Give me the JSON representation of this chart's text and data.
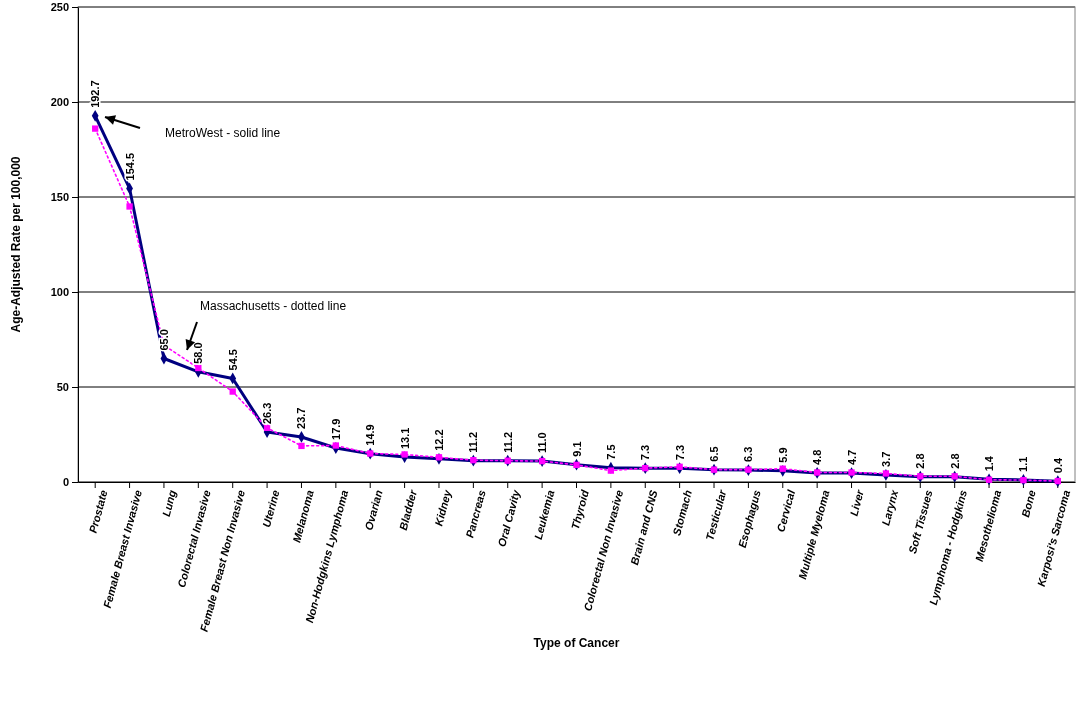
{
  "chart_data": {
    "type": "line",
    "xlabel": "Type of Cancer",
    "ylabel": "Age-Adjusted Rate per 100,000",
    "categories": [
      "Prostate",
      "Female Breast Invasive",
      "Lung",
      "Colorectal Invasive",
      "Female Breast Non Invasive",
      "Uterine",
      "Melanoma",
      "Non-Hodgkins Lymphoma",
      "Ovarian",
      "Bladder",
      "Kidney",
      "Pancreas",
      "Oral Cavity",
      "Leukemia",
      "Thyroid",
      "Colorectal Non Invasive",
      "Brain and CNS",
      "Stomach",
      "Testicular",
      "Esophagus",
      "Cervical",
      "Multiple Myeloma",
      "Liver",
      "Larynx",
      "Soft Tissues",
      "Lymphoma - Hodgkins",
      "Mesothelioma",
      "Bone",
      "Karposi's Sarcoma"
    ],
    "series": [
      {
        "color": "#000080",
        "marker": "diamond",
        "line_style": "solid",
        "values": [
          192.7,
          154.5,
          65.0,
          58.0,
          54.5,
          26.3,
          23.7,
          17.9,
          14.9,
          13.1,
          12.2,
          11.2,
          11.2,
          11.0,
          9.1,
          7.5,
          7.3,
          7.3,
          6.5,
          6.3,
          5.9,
          4.8,
          4.7,
          3.7,
          2.8,
          2.8,
          1.4,
          1.1,
          0.4
        ],
        "value_labels": [
          "192.7",
          "154.5",
          "65.0",
          "58.0",
          "54.5",
          "26.3",
          "23.7",
          "17.9",
          "14.9",
          "13.1",
          "12.2",
          "11.2",
          "11.2",
          "11.0",
          "9.1",
          "7.5",
          "7.3",
          "7.3",
          "6.5",
          "6.3",
          "5.9",
          "4.8",
          "4.7",
          "3.7",
          "2.8",
          "2.8",
          "1.4",
          "1.1",
          "0.4"
        ]
      },
      {
        "color": "#ff00ff",
        "marker": "square",
        "line_style": "dotted",
        "values": [
          186,
          145,
          72,
          60,
          47.6,
          28.5,
          19,
          19.2,
          15,
          14.5,
          13,
          11.5,
          11.2,
          11,
          9,
          6,
          7.3,
          8,
          6.5,
          6.5,
          7,
          5,
          5,
          4.5,
          3,
          3,
          1.2,
          1,
          0.5
        ]
      }
    ],
    "ylim": [
      0,
      250
    ],
    "yticks": [
      0,
      50,
      100,
      150,
      200,
      250
    ],
    "grid": "y",
    "annotations": [
      "MetroWest - solid line",
      "Massachusetts - dotted line"
    ]
  }
}
